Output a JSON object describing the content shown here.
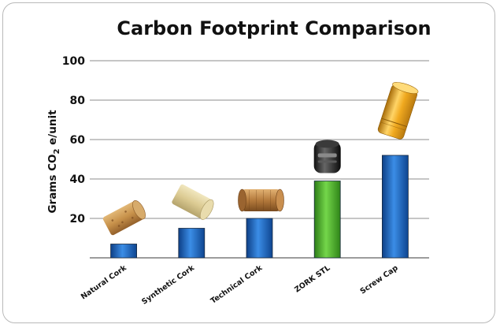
{
  "chart_data": {
    "type": "bar",
    "title": "Carbon Footprint Comparison",
    "ylabel": "Grams CO2 e/unit",
    "ylabel_parts": [
      "Grams CO",
      "2",
      " e/unit"
    ],
    "xlabel": "",
    "ylim": [
      0,
      100
    ],
    "yticks": [
      20,
      40,
      60,
      80,
      100
    ],
    "grid": true,
    "categories": [
      "Natural Cork",
      "Synthetic Cork",
      "Technical Cork",
      "ZORK STL",
      "Screw Cap"
    ],
    "values": [
      7,
      15,
      20,
      39,
      52
    ],
    "colors": [
      "#1f6fc7",
      "#1f6fc7",
      "#1f6fc7",
      "#4fbf2a",
      "#1f6fc7"
    ],
    "icons": [
      "natural-cork-icon",
      "synthetic-cork-icon",
      "technical-cork-icon",
      "zork-stl-closure-icon",
      "screw-cap-icon"
    ]
  }
}
